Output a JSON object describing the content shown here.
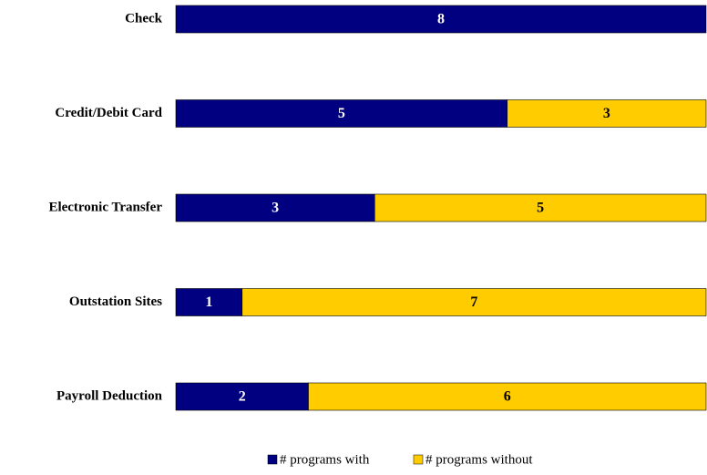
{
  "chart_data": {
    "type": "stacked-bar-horizontal",
    "categories": [
      "Check",
      "Credit/Debit Card",
      "Electronic Transfer",
      "Outstation Sites",
      "Payroll Deduction"
    ],
    "series": [
      {
        "name": "# programs with",
        "color": "#000080",
        "values": [
          8,
          5,
          3,
          1,
          2
        ]
      },
      {
        "name": "# programs without",
        "color": "#ffcc00",
        "values": [
          0,
          3,
          5,
          7,
          6
        ]
      }
    ],
    "xlim": [
      0,
      8
    ],
    "legend": "bottom"
  }
}
